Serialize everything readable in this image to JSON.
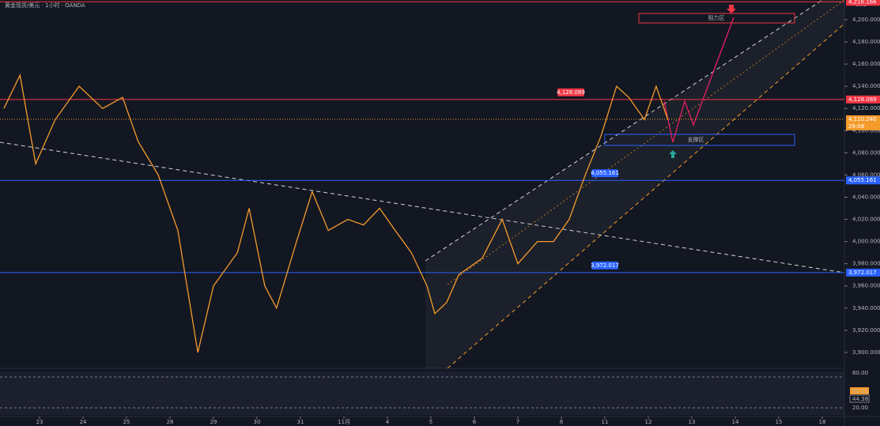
{
  "chart_data": {
    "type": "line",
    "title": "黄金现货/美元 · 1小时 · OANDA",
    "currency": "USD",
    "color": "#f59b2b",
    "x": [
      -0.82,
      -0.45,
      -0.09,
      0.36,
      0.91,
      1.45,
      1.91,
      2.27,
      2.73,
      3.18,
      3.64,
      4.0,
      4.55,
      4.82,
      5.18,
      5.45,
      5.91,
      6.27,
      6.64,
      7.09,
      7.45,
      7.82,
      8.18,
      8.55,
      8.91,
      9.09,
      9.36,
      9.64,
      10.18,
      10.64,
      11.0,
      11.45,
      11.82,
      12.18,
      12.55,
      12.91,
      13.27,
      13.55,
      13.91,
      14.18,
      14.45
    ],
    "values": [
      4120,
      4150,
      4070,
      4110,
      4140,
      4120,
      4130,
      4090,
      4060,
      4010,
      3900,
      3960,
      3990,
      4030,
      3960,
      3940,
      4000,
      4045,
      4010,
      4020,
      4015,
      4030,
      4010,
      3990,
      3960,
      3935,
      3945,
      3970,
      3985,
      4020,
      3980,
      4000,
      4000,
      4020,
      4060,
      4095,
      4140,
      4130,
      4110,
      4140,
      4110
    ],
    "xlim": [
      -0.91,
      18.51
    ],
    "xticks": [
      {
        "value": 0,
        "label": "23"
      },
      {
        "value": 1,
        "label": "24"
      },
      {
        "value": 2,
        "label": "25"
      },
      {
        "value": 3,
        "label": "28"
      },
      {
        "value": 4,
        "label": "29"
      },
      {
        "value": 5,
        "label": "30"
      },
      {
        "value": 6,
        "label": "31"
      },
      {
        "value": 7,
        "label": "11月"
      },
      {
        "value": 8,
        "label": "4"
      },
      {
        "value": 9,
        "label": "5"
      },
      {
        "value": 10,
        "label": "6"
      },
      {
        "value": 11,
        "label": "7"
      },
      {
        "value": 12,
        "label": "8"
      },
      {
        "value": 13,
        "label": "11"
      },
      {
        "value": 14,
        "label": "12"
      },
      {
        "value": 15,
        "label": "13"
      },
      {
        "value": 16,
        "label": "14"
      },
      {
        "value": 17,
        "label": "15"
      },
      {
        "value": 18,
        "label": "18"
      }
    ],
    "ylim": [
      3885.7,
      4217.8
    ],
    "yticks": [
      {
        "value": 3900,
        "label": "3,900.000"
      },
      {
        "value": 3920,
        "label": "3,920.000"
      },
      {
        "value": 3940,
        "label": "3,940.000"
      },
      {
        "value": 3960,
        "label": "3,960.000"
      },
      {
        "value": 3980,
        "label": "3,980.000"
      },
      {
        "value": 4000,
        "label": "4,000.000"
      },
      {
        "value": 4020,
        "label": "4,020.000"
      },
      {
        "value": 4040,
        "label": "4,040.000"
      },
      {
        "value": 4060,
        "label": "4,060.000"
      },
      {
        "value": 4080,
        "label": "4,080.000"
      },
      {
        "value": 4100,
        "label": "4,100.000"
      },
      {
        "value": 4120,
        "label": "4,120.000"
      },
      {
        "value": 4140,
        "label": "4,140.000"
      },
      {
        "value": 4160,
        "label": "4,160.000"
      },
      {
        "value": 4180,
        "label": "4,180.000"
      },
      {
        "value": 4200,
        "label": "4,200.000"
      }
    ],
    "levels": [
      {
        "value": 4216.166,
        "label": "4,216.166",
        "color": "#f23645"
      },
      {
        "value": 4128.089,
        "label": "4,128.089",
        "color": "#f23645"
      },
      {
        "value": 4055.161,
        "label": "4,055.161",
        "color": "#2962ff"
      },
      {
        "value": 3972.017,
        "label": "3,972.017",
        "color": "#2962ff"
      }
    ],
    "zones": {
      "resistance": "阻力区",
      "support": "支撑区"
    },
    "last_price": {
      "value": 4110.24,
      "label": "4,110.240"
    },
    "countdown": "29:08",
    "rsi": {
      "ylim": [
        6.2,
        90.8
      ],
      "yticks": [
        {
          "value": 80,
          "label": "80.00"
        },
        {
          "value": 20,
          "label": "20.00"
        }
      ],
      "labels": [
        "52.11",
        "44.38"
      ]
    }
  }
}
